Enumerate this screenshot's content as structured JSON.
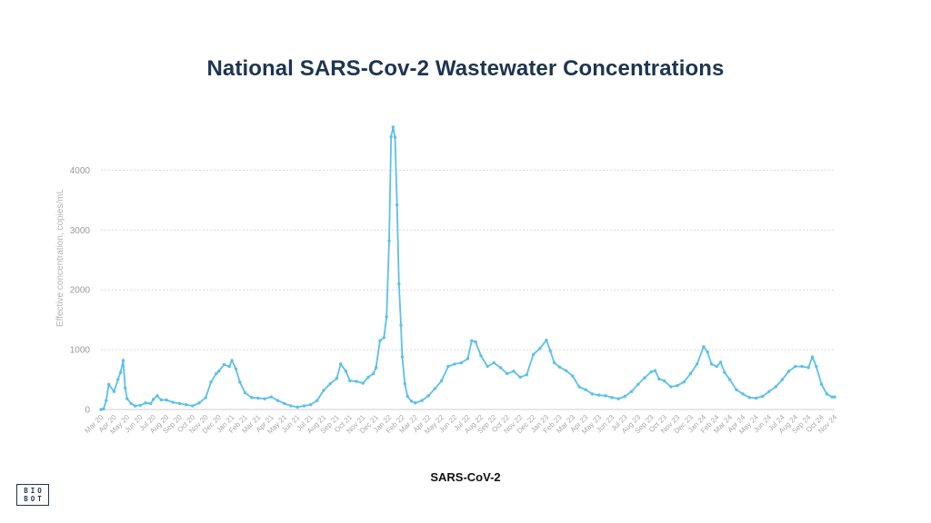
{
  "logo": {
    "line1": "BIO",
    "line2": "BOT"
  },
  "chart_data": {
    "type": "line",
    "title": "National SARS-Cov-2 Wastewater Concentrations",
    "ylabel": "Effective concentration, copies/mL",
    "xlabel": "",
    "ylim": [
      0,
      4750
    ],
    "yticks": [
      0,
      1000,
      2000,
      3000,
      4000
    ],
    "grid": true,
    "legend": "bottom",
    "color": "#5bc0eb",
    "xtick_labels": [
      "Mar 20",
      "Apr 20",
      "May 20",
      "Jun 20",
      "Jul 20",
      "Aug 20",
      "Sep 20",
      "Oct 20",
      "Nov 20",
      "Dec 20",
      "Jan 21",
      "Feb 21",
      "Mar 21",
      "Apr 21",
      "May 21",
      "Jun 21",
      "Jul 21",
      "Aug 21",
      "Sep 21",
      "Oct 21",
      "Nov 21",
      "Dec 21",
      "Jan 22",
      "Feb 22",
      "Mar 22",
      "Apr 22",
      "May 22",
      "Jun 22",
      "Jul 22",
      "Aug 22",
      "Sep 22",
      "Oct 22",
      "Nov 22",
      "Dec 22",
      "Jan 23",
      "Feb 23",
      "Mar 23",
      "Apr 23",
      "May 23",
      "Jun 23",
      "Jul 23",
      "Aug 23",
      "Sep 23",
      "Oct 23",
      "Nov 23",
      "Dec 23",
      "Jan 24",
      "Feb 24",
      "Mar 24",
      "Apr 24",
      "May 24",
      "Jun 24",
      "Jul 24",
      "Aug 24",
      "Sep 24",
      "Oct 24",
      "Nov 24"
    ],
    "series": [
      {
        "name": "SARS-CoV-2",
        "points": [
          [
            "Mar 20",
            0
          ],
          [
            "Mar 20.2",
            10
          ],
          [
            "Mar 20.4",
            150
          ],
          [
            "Mar 20.6",
            420
          ],
          [
            "Apr 20",
            300
          ],
          [
            "Apr 20.3",
            500
          ],
          [
            "Apr 20.5",
            620
          ],
          [
            "Apr 20.7",
            820
          ],
          [
            "Apr 20.85",
            360
          ],
          [
            "May 20",
            180
          ],
          [
            "May 20.3",
            100
          ],
          [
            "May 20.6",
            60
          ],
          [
            "Jun 20",
            70
          ],
          [
            "Jun 20.4",
            110
          ],
          [
            "Jun 20.8",
            100
          ],
          [
            "Jul 20",
            170
          ],
          [
            "Jul 20.3",
            230
          ],
          [
            "Jul 20.6",
            160
          ],
          [
            "Aug 20",
            160
          ],
          [
            "Aug 20.5",
            120
          ],
          [
            "Sep 20",
            100
          ],
          [
            "Sep 20.5",
            80
          ],
          [
            "Oct 20",
            60
          ],
          [
            "Oct 20.5",
            110
          ],
          [
            "Nov 20",
            200
          ],
          [
            "Nov 20.4",
            460
          ],
          [
            "Nov 20.8",
            600
          ],
          [
            "Dec 20",
            640
          ],
          [
            "Dec 20.4",
            750
          ],
          [
            "Dec 20.8",
            720
          ],
          [
            "Jan 21",
            820
          ],
          [
            "Jan 21.3",
            680
          ],
          [
            "Jan 21.6",
            460
          ],
          [
            "Feb 21",
            280
          ],
          [
            "Feb 21.5",
            200
          ],
          [
            "Mar 21",
            190
          ],
          [
            "Mar 21.5",
            180
          ],
          [
            "Apr 21",
            210
          ],
          [
            "Apr 21.5",
            150
          ],
          [
            "May 21",
            100
          ],
          [
            "May 21.5",
            60
          ],
          [
            "Jun 21",
            40
          ],
          [
            "Jun 21.5",
            60
          ],
          [
            "Jul 21",
            80
          ],
          [
            "Jul 21.5",
            150
          ],
          [
            "Aug 21",
            320
          ],
          [
            "Aug 21.5",
            430
          ],
          [
            "Sep 21",
            520
          ],
          [
            "Sep 21.3",
            760
          ],
          [
            "Sep 21.7",
            640
          ],
          [
            "Oct 21",
            480
          ],
          [
            "Oct 21.5",
            470
          ],
          [
            "Nov 21",
            440
          ],
          [
            "Nov 21.4",
            540
          ],
          [
            "Nov 21.8",
            600
          ],
          [
            "Dec 21",
            700
          ],
          [
            "Dec 21.3",
            1150
          ],
          [
            "Dec 21.6",
            1200
          ],
          [
            "Dec 21.8",
            1550
          ],
          [
            "Jan 22",
            2820
          ],
          [
            "Jan 22.15",
            4560
          ],
          [
            "Jan 22.3",
            4720
          ],
          [
            "Jan 22.45",
            4550
          ],
          [
            "Jan 22.6",
            3420
          ],
          [
            "Jan 22.75",
            2100
          ],
          [
            "Jan 22.9",
            1410
          ],
          [
            "Feb 22",
            880
          ],
          [
            "Feb 22.2",
            430
          ],
          [
            "Feb 22.4",
            220
          ],
          [
            "Feb 22.7",
            140
          ],
          [
            "Mar 22",
            110
          ],
          [
            "Mar 22.5",
            150
          ],
          [
            "Apr 22",
            230
          ],
          [
            "Apr 22.5",
            350
          ],
          [
            "May 22",
            480
          ],
          [
            "May 22.5",
            720
          ],
          [
            "Jun 22",
            760
          ],
          [
            "Jun 22.5",
            780
          ],
          [
            "Jul 22",
            850
          ],
          [
            "Jul 22.3",
            1150
          ],
          [
            "Jul 22.6",
            1130
          ],
          [
            "Aug 22",
            900
          ],
          [
            "Aug 22.5",
            720
          ],
          [
            "Sep 22",
            780
          ],
          [
            "Sep 22.5",
            700
          ],
          [
            "Oct 22",
            600
          ],
          [
            "Oct 22.5",
            640
          ],
          [
            "Nov 22",
            540
          ],
          [
            "Nov 22.5",
            580
          ],
          [
            "Dec 22",
            920
          ],
          [
            "Dec 22.5",
            1020
          ],
          [
            "Jan 23",
            1160
          ],
          [
            "Jan 23.3",
            980
          ],
          [
            "Jan 23.6",
            780
          ],
          [
            "Feb 23",
            710
          ],
          [
            "Feb 23.5",
            650
          ],
          [
            "Mar 23",
            560
          ],
          [
            "Mar 23.5",
            380
          ],
          [
            "Apr 23",
            330
          ],
          [
            "Apr 23.5",
            260
          ],
          [
            "May 23",
            240
          ],
          [
            "May 23.5",
            230
          ],
          [
            "Jun 23",
            200
          ],
          [
            "Jun 23.5",
            180
          ],
          [
            "Jul 23",
            220
          ],
          [
            "Jul 23.5",
            300
          ],
          [
            "Aug 23",
            420
          ],
          [
            "Aug 23.5",
            530
          ],
          [
            "Sep 23",
            630
          ],
          [
            "Sep 23.3",
            650
          ],
          [
            "Sep 23.6",
            510
          ],
          [
            "Oct 23",
            480
          ],
          [
            "Oct 23.5",
            380
          ],
          [
            "Nov 23",
            400
          ],
          [
            "Nov 23.5",
            460
          ],
          [
            "Dec 23",
            600
          ],
          [
            "Dec 23.5",
            760
          ],
          [
            "Jan 24",
            1050
          ],
          [
            "Jan 24.3",
            960
          ],
          [
            "Jan 24.6",
            760
          ],
          [
            "Feb 24",
            720
          ],
          [
            "Feb 24.3",
            790
          ],
          [
            "Feb 24.6",
            620
          ],
          [
            "Mar 24",
            500
          ],
          [
            "Mar 24.5",
            330
          ],
          [
            "Apr 24",
            260
          ],
          [
            "Apr 24.5",
            200
          ],
          [
            "May 24",
            190
          ],
          [
            "May 24.5",
            220
          ],
          [
            "Jun 24",
            300
          ],
          [
            "Jun 24.5",
            380
          ],
          [
            "Jul 24",
            500
          ],
          [
            "Jul 24.5",
            640
          ],
          [
            "Aug 24",
            720
          ],
          [
            "Aug 24.5",
            720
          ],
          [
            "Sep 24",
            700
          ],
          [
            "Sep 24.3",
            880
          ],
          [
            "Sep 24.6",
            720
          ],
          [
            "Oct 24",
            420
          ],
          [
            "Oct 24.4",
            260
          ],
          [
            "Oct 24.8",
            210
          ],
          [
            "Nov 24",
            210
          ]
        ]
      }
    ]
  }
}
